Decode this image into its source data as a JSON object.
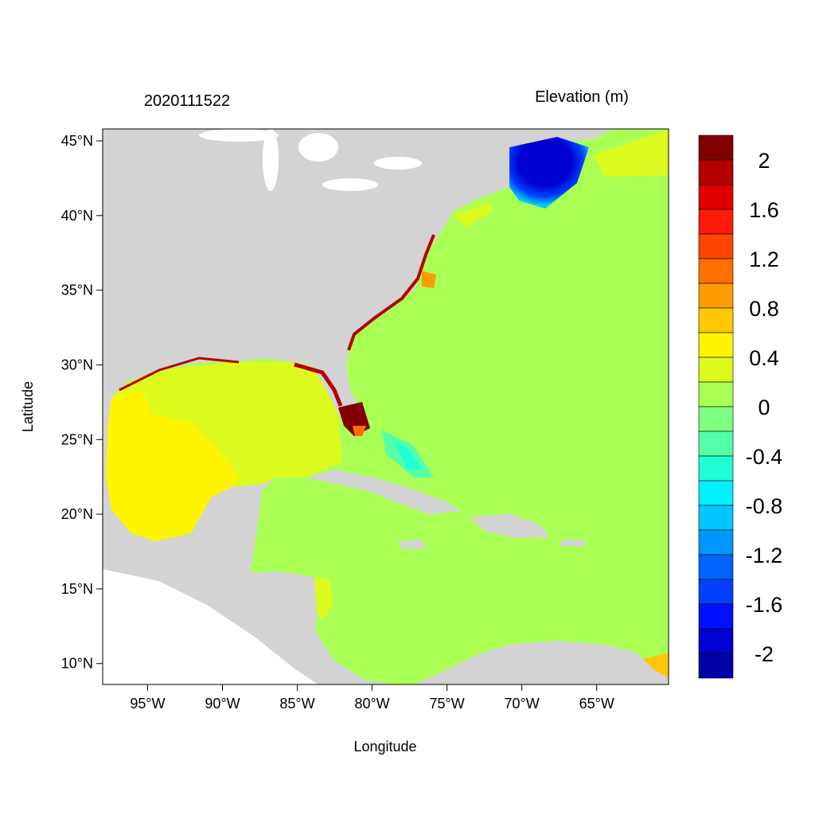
{
  "chart_data": {
    "type": "heatmap",
    "title_left": "2020111522",
    "title_right": "Elevation (m)",
    "xlabel": "Longitude",
    "ylabel": "Latitude",
    "xlim": [
      -98,
      -60.2
    ],
    "ylim": [
      8.6,
      45.8
    ],
    "x_ticks": [
      {
        "value": -95,
        "label": "95°W"
      },
      {
        "value": -90,
        "label": "90°W"
      },
      {
        "value": -85,
        "label": "85°W"
      },
      {
        "value": -80,
        "label": "80°W"
      },
      {
        "value": -75,
        "label": "75°W"
      },
      {
        "value": -70,
        "label": "70°W"
      },
      {
        "value": -65,
        "label": "65°W"
      }
    ],
    "y_ticks": [
      {
        "value": 45,
        "label": "45°N"
      },
      {
        "value": 40,
        "label": "40°N"
      },
      {
        "value": 35,
        "label": "35°N"
      },
      {
        "value": 30,
        "label": "30°N"
      },
      {
        "value": 25,
        "label": "25°N"
      },
      {
        "value": 20,
        "label": "20°N"
      },
      {
        "value": 15,
        "label": "15°N"
      },
      {
        "value": 10,
        "label": "10°N"
      }
    ],
    "colorbar": {
      "levels": [
        -2,
        -1.8,
        -1.6,
        -1.4,
        -1.2,
        -1,
        -0.8,
        -0.6,
        -0.4,
        -0.2,
        0,
        0.2,
        0.4,
        0.6,
        0.8,
        1,
        1.2,
        1.4,
        1.6,
        1.8,
        2
      ],
      "labels": [
        "2",
        "1.6",
        "1.2",
        "0.8",
        "0.4",
        "0",
        "-0.4",
        "-0.8",
        "-1.2",
        "-1.6",
        "-2"
      ],
      "label_values": [
        2,
        1.6,
        1.2,
        0.8,
        0.4,
        0,
        -0.4,
        -0.8,
        -1.2,
        -1.6,
        -2
      ],
      "colors_top_to_bottom": [
        "#800000",
        "#B40000",
        "#E00000",
        "#FF1A0A",
        "#FF4500",
        "#FF7000",
        "#FF9C00",
        "#FFC800",
        "#FFF500",
        "#DCFA1E",
        "#AAFF55",
        "#7FFF7F",
        "#55FFAA",
        "#22FFD4",
        "#00F0FF",
        "#00C8FF",
        "#0096FF",
        "#0064FF",
        "#0040FF",
        "#0010FF",
        "#0000D0",
        "#0000A8"
      ]
    },
    "land_color": "#D3D3D3",
    "ocean_base_color": "#AAFF55"
  }
}
